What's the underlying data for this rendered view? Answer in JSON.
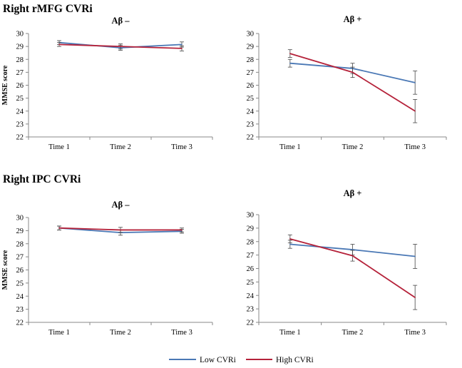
{
  "sections": [
    {
      "title": "Right rMFG CVRi"
    },
    {
      "title": "Right IPC CVRi"
    }
  ],
  "legend": [
    {
      "label": "Low CVRi",
      "color": "#4a78b5"
    },
    {
      "label": "High CVRi",
      "color": "#b5223a"
    }
  ],
  "chart_data": [
    {
      "type": "line",
      "section": "Right rMFG CVRi",
      "title": "Aβ –",
      "ylabel": "MMSE score",
      "categories": [
        "Time 1",
        "Time 2",
        "Time 3"
      ],
      "ylim": [
        22,
        30
      ],
      "yticks": [
        22,
        23,
        24,
        25,
        26,
        27,
        28,
        29,
        30
      ],
      "series": [
        {
          "name": "Low CVRi",
          "values": [
            29.3,
            28.9,
            29.15
          ],
          "errors": [
            0.15,
            0.2,
            0.2
          ]
        },
        {
          "name": "High CVRi",
          "values": [
            29.15,
            29.0,
            28.85
          ],
          "errors": [
            0.15,
            0.2,
            0.2
          ]
        }
      ]
    },
    {
      "type": "line",
      "section": "Right rMFG CVRi",
      "title": "Aβ +",
      "ylabel": "",
      "categories": [
        "Time 1",
        "Time 2",
        "Time 3"
      ],
      "ylim": [
        22,
        30
      ],
      "yticks": [
        22,
        23,
        24,
        25,
        26,
        27,
        28,
        29,
        30
      ],
      "series": [
        {
          "name": "Low CVRi",
          "values": [
            27.7,
            27.3,
            26.2
          ],
          "errors": [
            0.3,
            0.4,
            0.9
          ]
        },
        {
          "name": "High CVRi",
          "values": [
            28.45,
            27.0,
            24.0
          ],
          "errors": [
            0.3,
            0.4,
            0.9
          ]
        }
      ]
    },
    {
      "type": "line",
      "section": "Right IPC CVRi",
      "title": "Aβ –",
      "ylabel": "MMSE score",
      "categories": [
        "Time 1",
        "Time 2",
        "Time 3"
      ],
      "ylim": [
        22,
        30
      ],
      "yticks": [
        22,
        23,
        24,
        25,
        26,
        27,
        28,
        29,
        30
      ],
      "series": [
        {
          "name": "Low CVRi",
          "values": [
            29.2,
            28.85,
            28.95
          ],
          "errors": [
            0.15,
            0.2,
            0.15
          ]
        },
        {
          "name": "High CVRi",
          "values": [
            29.2,
            29.05,
            29.05
          ],
          "errors": [
            0.15,
            0.2,
            0.15
          ]
        }
      ]
    },
    {
      "type": "line",
      "section": "Right IPC CVRi",
      "title": "Aβ +",
      "ylabel": "",
      "categories": [
        "Time 1",
        "Time 2",
        "Time 3"
      ],
      "ylim": [
        22,
        30
      ],
      "yticks": [
        22,
        23,
        24,
        25,
        26,
        27,
        28,
        29,
        30
      ],
      "series": [
        {
          "name": "Low CVRi",
          "values": [
            27.8,
            27.4,
            26.9
          ],
          "errors": [
            0.3,
            0.4,
            0.9
          ]
        },
        {
          "name": "High CVRi",
          "values": [
            28.2,
            26.95,
            23.85
          ],
          "errors": [
            0.3,
            0.4,
            0.9
          ]
        }
      ]
    }
  ]
}
